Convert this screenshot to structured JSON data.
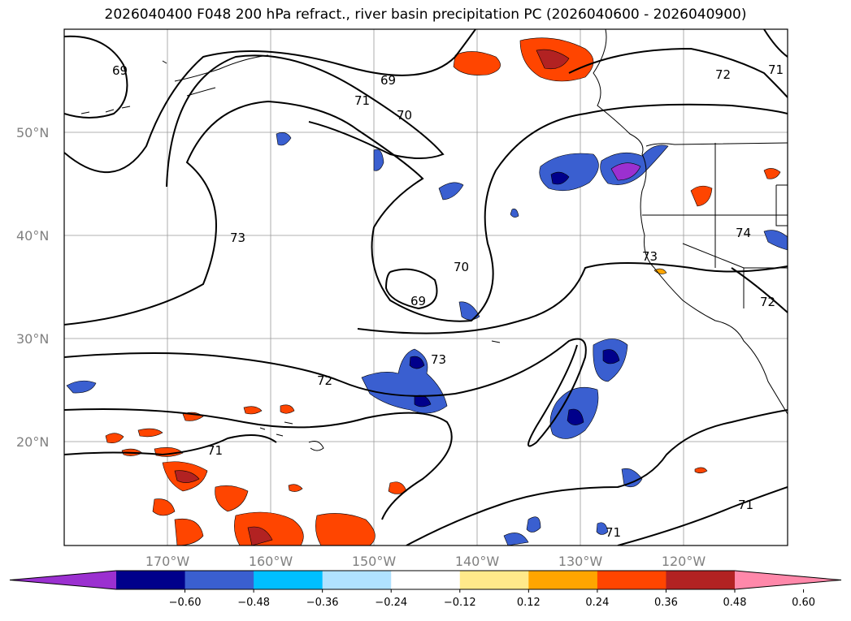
{
  "title": "2026040400 F048 200 hPa refract., river basin precipitation PC (2026040600 - 2026040900)",
  "lat_labels": [
    "50°N",
    "40°N",
    "30°N",
    "20°N"
  ],
  "lon_labels": [
    "170°W",
    "160°W",
    "150°W",
    "140°W",
    "130°W",
    "120°W"
  ],
  "contour_labels": [
    "69",
    "69",
    "71",
    "70",
    "72",
    "71",
    "73",
    "70",
    "69",
    "73",
    "72",
    "74",
    "73",
    "72",
    "71",
    "71",
    "71"
  ],
  "colorbar": {
    "ticks": [
      "−0.60",
      "−0.48",
      "−0.36",
      "−0.24",
      "−0.12",
      "0.12",
      "0.24",
      "0.36",
      "0.48",
      "0.60"
    ],
    "colors": [
      "#9b30d0",
      "#00008b",
      "#3a5fd0",
      "#00bfff",
      "#b0e2ff",
      "#ffffff",
      "#ffe98a",
      "#ffa500",
      "#ff4500",
      "#b22222",
      "#ff88aa"
    ]
  }
}
